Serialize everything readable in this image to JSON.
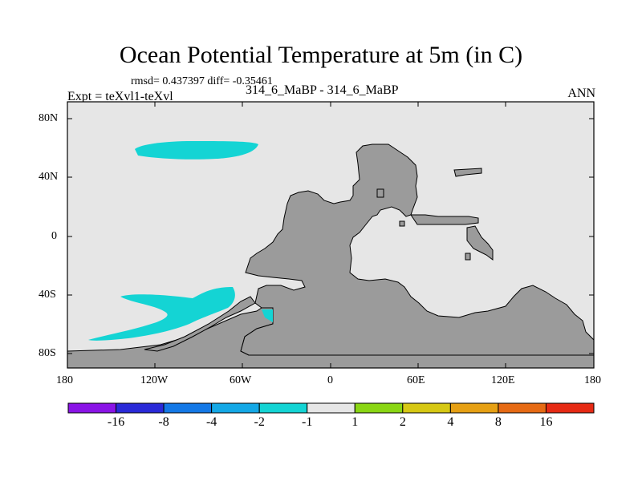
{
  "title": "Ocean Potential Temperature at 5m (in C)",
  "stats": "rmsd= 0.437397 diff= -0.35461",
  "expt": "Expt = teXvl1-teXvl",
  "cases": "314_6_MaBP - 314_6_MaBP",
  "season": "ANN",
  "lat_ticks": [
    "80N",
    "40N",
    "0",
    "40S",
    "80S"
  ],
  "lon_ticks": [
    "180",
    "120W",
    "60W",
    "0",
    "60E",
    "120E",
    "180"
  ],
  "colors": {
    "ocean": "#e6e6e6",
    "land": "#9b9b9b",
    "anomaly": "#14d4d4"
  },
  "colorbar": {
    "labels": [
      "-16",
      "-8",
      "-4",
      "-2",
      "-1",
      "1",
      "2",
      "4",
      "8",
      "16"
    ],
    "colors": [
      "#8a14e6",
      "#2a2ad8",
      "#1478e6",
      "#14a8e6",
      "#14d4d4",
      "#e6e6e6",
      "#8ad614",
      "#d6c814",
      "#e6a014",
      "#e66a14",
      "#e62a14"
    ]
  }
}
